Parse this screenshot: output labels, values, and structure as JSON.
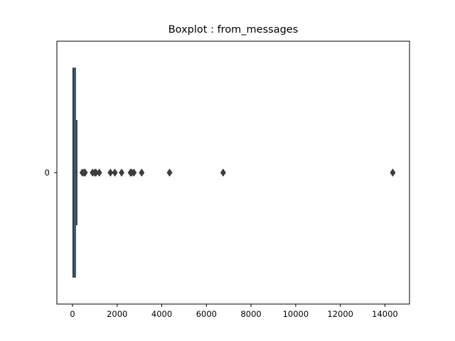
{
  "chart_data": {
    "type": "boxplot",
    "title": "Boxplot : from_messages",
    "orientation": "horizontal",
    "xlim": [
      -700,
      15100
    ],
    "x_ticks": [
      0,
      2000,
      4000,
      6000,
      8000,
      10000,
      12000,
      14000
    ],
    "y_categories": [
      "0"
    ],
    "box": {
      "category": "0",
      "q1": 20,
      "median": 50,
      "q3": 130,
      "whisker_low": 0,
      "whisker_high": 190,
      "color": "#3274a1",
      "edge_color": "#3d3d3d"
    },
    "outliers": [
      440,
      520,
      560,
      900,
      1000,
      1050,
      1200,
      1700,
      1900,
      2200,
      2600,
      2650,
      2750,
      3100,
      4350,
      6750,
      14350
    ]
  }
}
